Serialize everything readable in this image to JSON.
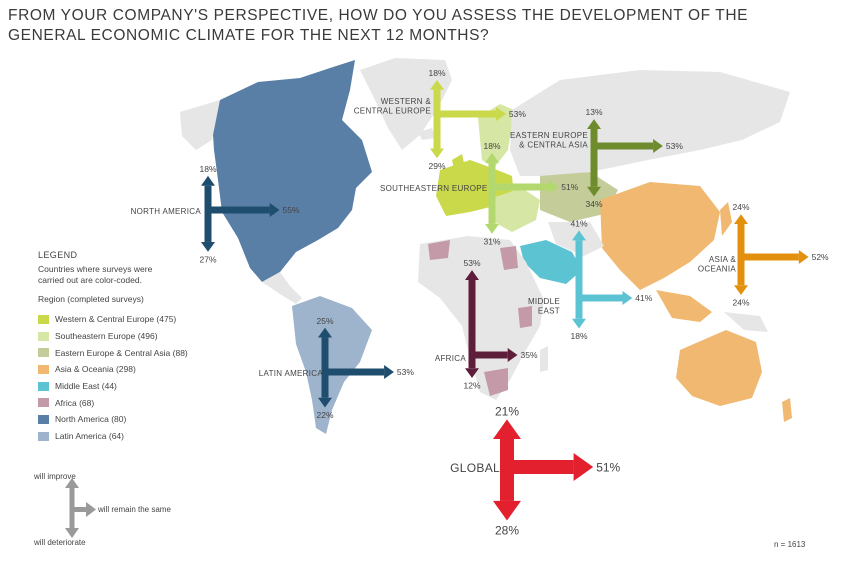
{
  "title_line1": "FROM YOUR COMPANY'S PERSPECTIVE, HOW DO YOU ASSESS THE DEVELOPMENT OF THE",
  "title_line2": "GENERAL ECONOMIC CLIMATE FOR THE NEXT 12 MONTHS?",
  "legend": {
    "title": "LEGEND",
    "note": "Countries where surveys were carried out are color-coded.",
    "subtitle": "Region (completed surveys)",
    "items": [
      {
        "label": "Western & Central Europe (475)",
        "color": "#c9d94a"
      },
      {
        "label": "Southeastern Europe (496)",
        "color": "#d6e6a4"
      },
      {
        "label": "Eastern Europe & Central Asia (88)",
        "color": "#c4cc9a"
      },
      {
        "label": "Asia & Oceania (298)",
        "color": "#f0b870"
      },
      {
        "label": "Middle East (44)",
        "color": "#5cc3d3"
      },
      {
        "label": "Africa (68)",
        "color": "#c49aa8"
      },
      {
        "label": "North America (80)",
        "color": "#5a7fa6"
      },
      {
        "label": "Latin America (64)",
        "color": "#9eb4cc"
      }
    ]
  },
  "key": {
    "improve": "will improve",
    "same": "will remain the same",
    "deteriorate": "will deteriorate"
  },
  "n_label": "n = 1613",
  "chart_data": {
    "type": "arrow-map",
    "title": "FROM YOUR COMPANY'S PERSPECTIVE, HOW DO YOU ASSESS THE DEVELOPMENT OF THE GENERAL ECONOMIC CLIMATE FOR THE NEXT 12 MONTHS?",
    "value_labels": {
      "improve": "will improve",
      "same": "will remain the same",
      "deteriorate": "will deteriorate"
    },
    "unit": "%",
    "n": 1613,
    "regions": [
      {
        "name": "WESTERN & CENTRAL EUROPE",
        "surveys": 475,
        "improve": 18,
        "same": 53,
        "deteriorate": 29,
        "color": "#c9d94a"
      },
      {
        "name": "SOUTHEASTERN EUROPE",
        "surveys": 496,
        "improve": 18,
        "same": 51,
        "deteriorate": 31,
        "color": "#b3d96e"
      },
      {
        "name": "EASTERN EUROPE & CENTRAL ASIA",
        "surveys": 88,
        "improve": 13,
        "same": 53,
        "deteriorate": 34,
        "color": "#6e8c2e"
      },
      {
        "name": "ASIA & OCEANIA",
        "surveys": 298,
        "improve": 24,
        "same": 52,
        "deteriorate": 24,
        "color": "#e4900f"
      },
      {
        "name": "MIDDLE EAST",
        "surveys": 44,
        "improve": 41,
        "same": 41,
        "deteriorate": 18,
        "color": "#5cc3d3"
      },
      {
        "name": "AFRICA",
        "surveys": 68,
        "improve": 53,
        "same": 35,
        "deteriorate": 12,
        "color": "#5e1e3a"
      },
      {
        "name": "NORTH AMERICA",
        "surveys": 80,
        "improve": 18,
        "same": 55,
        "deteriorate": 27,
        "color": "#1e4d6e"
      },
      {
        "name": "LATIN AMERICA",
        "surveys": 64,
        "improve": 25,
        "same": 53,
        "deteriorate": 22,
        "color": "#1e4d6e"
      },
      {
        "name": "GLOBAL",
        "surveys": 1613,
        "improve": 21,
        "same": 51,
        "deteriorate": 28,
        "color": "#e2202e"
      }
    ]
  }
}
